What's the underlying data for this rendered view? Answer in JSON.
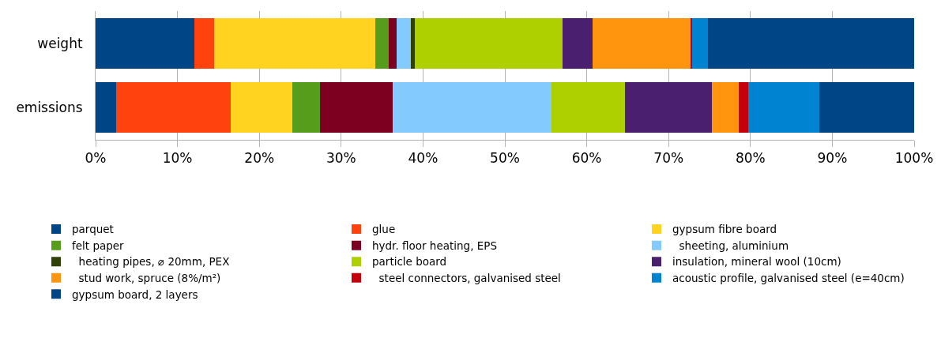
{
  "chart_data": {
    "type": "bar",
    "orientation": "horizontal",
    "stacked": true,
    "categories": [
      "weight",
      "emissions"
    ],
    "series": [
      {
        "name": "parquet",
        "color": "#004586",
        "values": [
          12.1,
          2.5
        ]
      },
      {
        "name": "glue",
        "color": "#ff420e",
        "values": [
          2.4,
          14.0
        ]
      },
      {
        "name": "gypsum fibre board",
        "color": "#ffd320",
        "values": [
          19.7,
          7.5
        ]
      },
      {
        "name": "felt paper",
        "color": "#579d1c",
        "values": [
          1.6,
          3.4
        ]
      },
      {
        "name": "hydr. floor heating, EPS",
        "color": "#7e0021",
        "values": [
          1.0,
          8.9
        ]
      },
      {
        "name": "  sheeting, aluminium",
        "color": "#83caff",
        "values": [
          1.7,
          19.4
        ]
      },
      {
        "name": "  heating pipes, ⌀ 20mm, PEX",
        "color": "#314004",
        "values": [
          0.5,
          0
        ]
      },
      {
        "name": "particle board",
        "color": "#aecf00",
        "values": [
          18.0,
          9.0
        ]
      },
      {
        "name": "insulation, mineral wool (10cm)",
        "color": "#4b1f6f",
        "values": [
          3.7,
          10.6
        ]
      },
      {
        "name": "  stud work, spruce (8%/m²)",
        "color": "#ff950e",
        "values": [
          12.0,
          3.3
        ]
      },
      {
        "name": "  steel connectors, galvanised steel",
        "color": "#c5000b",
        "values": [
          0.2,
          1.1
        ]
      },
      {
        "name": "acoustic profile, galvanised steel (e=40cm)",
        "color": "#0084d1",
        "values": [
          1.9,
          8.7
        ]
      },
      {
        "name": "gypsum board, 2 layers",
        "color": "#004586",
        "values": [
          25.2,
          11.6
        ]
      }
    ],
    "xlim": [
      0,
      100
    ],
    "xticks": [
      {
        "value": 0,
        "label": "0%"
      },
      {
        "value": 10,
        "label": "10%"
      },
      {
        "value": 20,
        "label": "20%"
      },
      {
        "value": 30,
        "label": "30%"
      },
      {
        "value": 40,
        "label": "40%"
      },
      {
        "value": 50,
        "label": "50%"
      },
      {
        "value": 60,
        "label": "60%"
      },
      {
        "value": 70,
        "label": "70%"
      },
      {
        "value": 80,
        "label": "80%"
      },
      {
        "value": 90,
        "label": "90%"
      },
      {
        "value": 100,
        "label": "100%"
      }
    ],
    "grid": "x",
    "legend": "bottom"
  }
}
